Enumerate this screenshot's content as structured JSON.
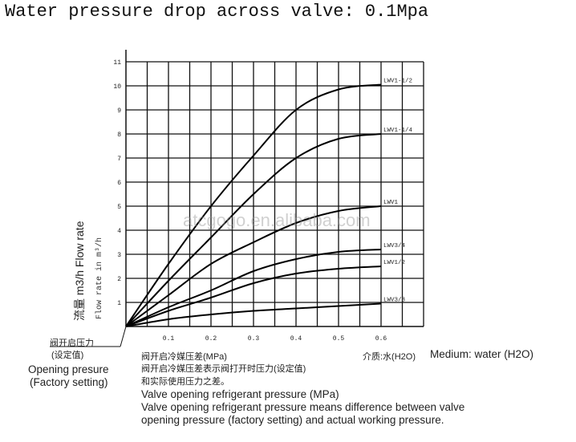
{
  "title": "Water pressure drop across valve: 0.1Mpa",
  "watermark": "atcgogo.en.alibaba.com",
  "chart_data": {
    "type": "line",
    "title": "Water pressure drop across valve: 0.1Mpa",
    "xlabel": "阀开启冷媒压差(MPa)",
    "xlabel_en": "Valve opening refrigerant pressure (MPa)",
    "ylabel": "流量 m3/h Flow rate",
    "ylabel_en": "Flow rate in m³/h",
    "xlim": [
      0,
      0.7
    ],
    "ylim": [
      0,
      11
    ],
    "grid": true,
    "x_ticks": [
      "0.1",
      "0.2",
      "0.3",
      "0.4",
      "0.5",
      "0.6"
    ],
    "y_ticks": [
      "1",
      "2",
      "3",
      "4",
      "5",
      "6",
      "7",
      "8",
      "9",
      "10",
      "11"
    ],
    "x": [
      0,
      0.1,
      0.2,
      0.3,
      0.4,
      0.5,
      0.6
    ],
    "series": [
      {
        "name": "LWV1-1/2",
        "values": [
          0,
          2.6,
          5.0,
          7.1,
          9.0,
          9.85,
          10.05
        ]
      },
      {
        "name": "LWV1-1/4",
        "values": [
          0,
          1.9,
          3.7,
          5.5,
          7.0,
          7.8,
          8.0
        ]
      },
      {
        "name": "LWV1",
        "values": [
          0,
          1.3,
          2.6,
          3.5,
          4.3,
          4.8,
          5.0
        ]
      },
      {
        "name": "LWV3/4",
        "values": [
          0,
          0.8,
          1.5,
          2.3,
          2.8,
          3.1,
          3.2
        ]
      },
      {
        "name": "LWV1/2",
        "values": [
          0,
          0.65,
          1.2,
          1.8,
          2.2,
          2.4,
          2.5
        ]
      },
      {
        "name": "LWV3/8",
        "values": [
          0,
          0.3,
          0.5,
          0.65,
          0.75,
          0.85,
          0.95
        ]
      }
    ]
  },
  "annotations": {
    "opening_pressure_cn": "阀开启压力",
    "opening_pressure_cn2": "(设定值)",
    "opening_pressure_en": "Opening presure",
    "opening_pressure_en2": "(Factory setting)",
    "medium_cn": "介质:水(H2O)",
    "medium_en": "Medium: water (H2O)",
    "note_cn1": "阀开启冷媒压差表示阀打开时压力(设定值)",
    "note_cn2": "和实际使用压力之差。",
    "note_en1": "Valve opening refrigerant pressure means difference between valve",
    "note_en2": "opening pressure (factory setting) and actual working pressure."
  }
}
